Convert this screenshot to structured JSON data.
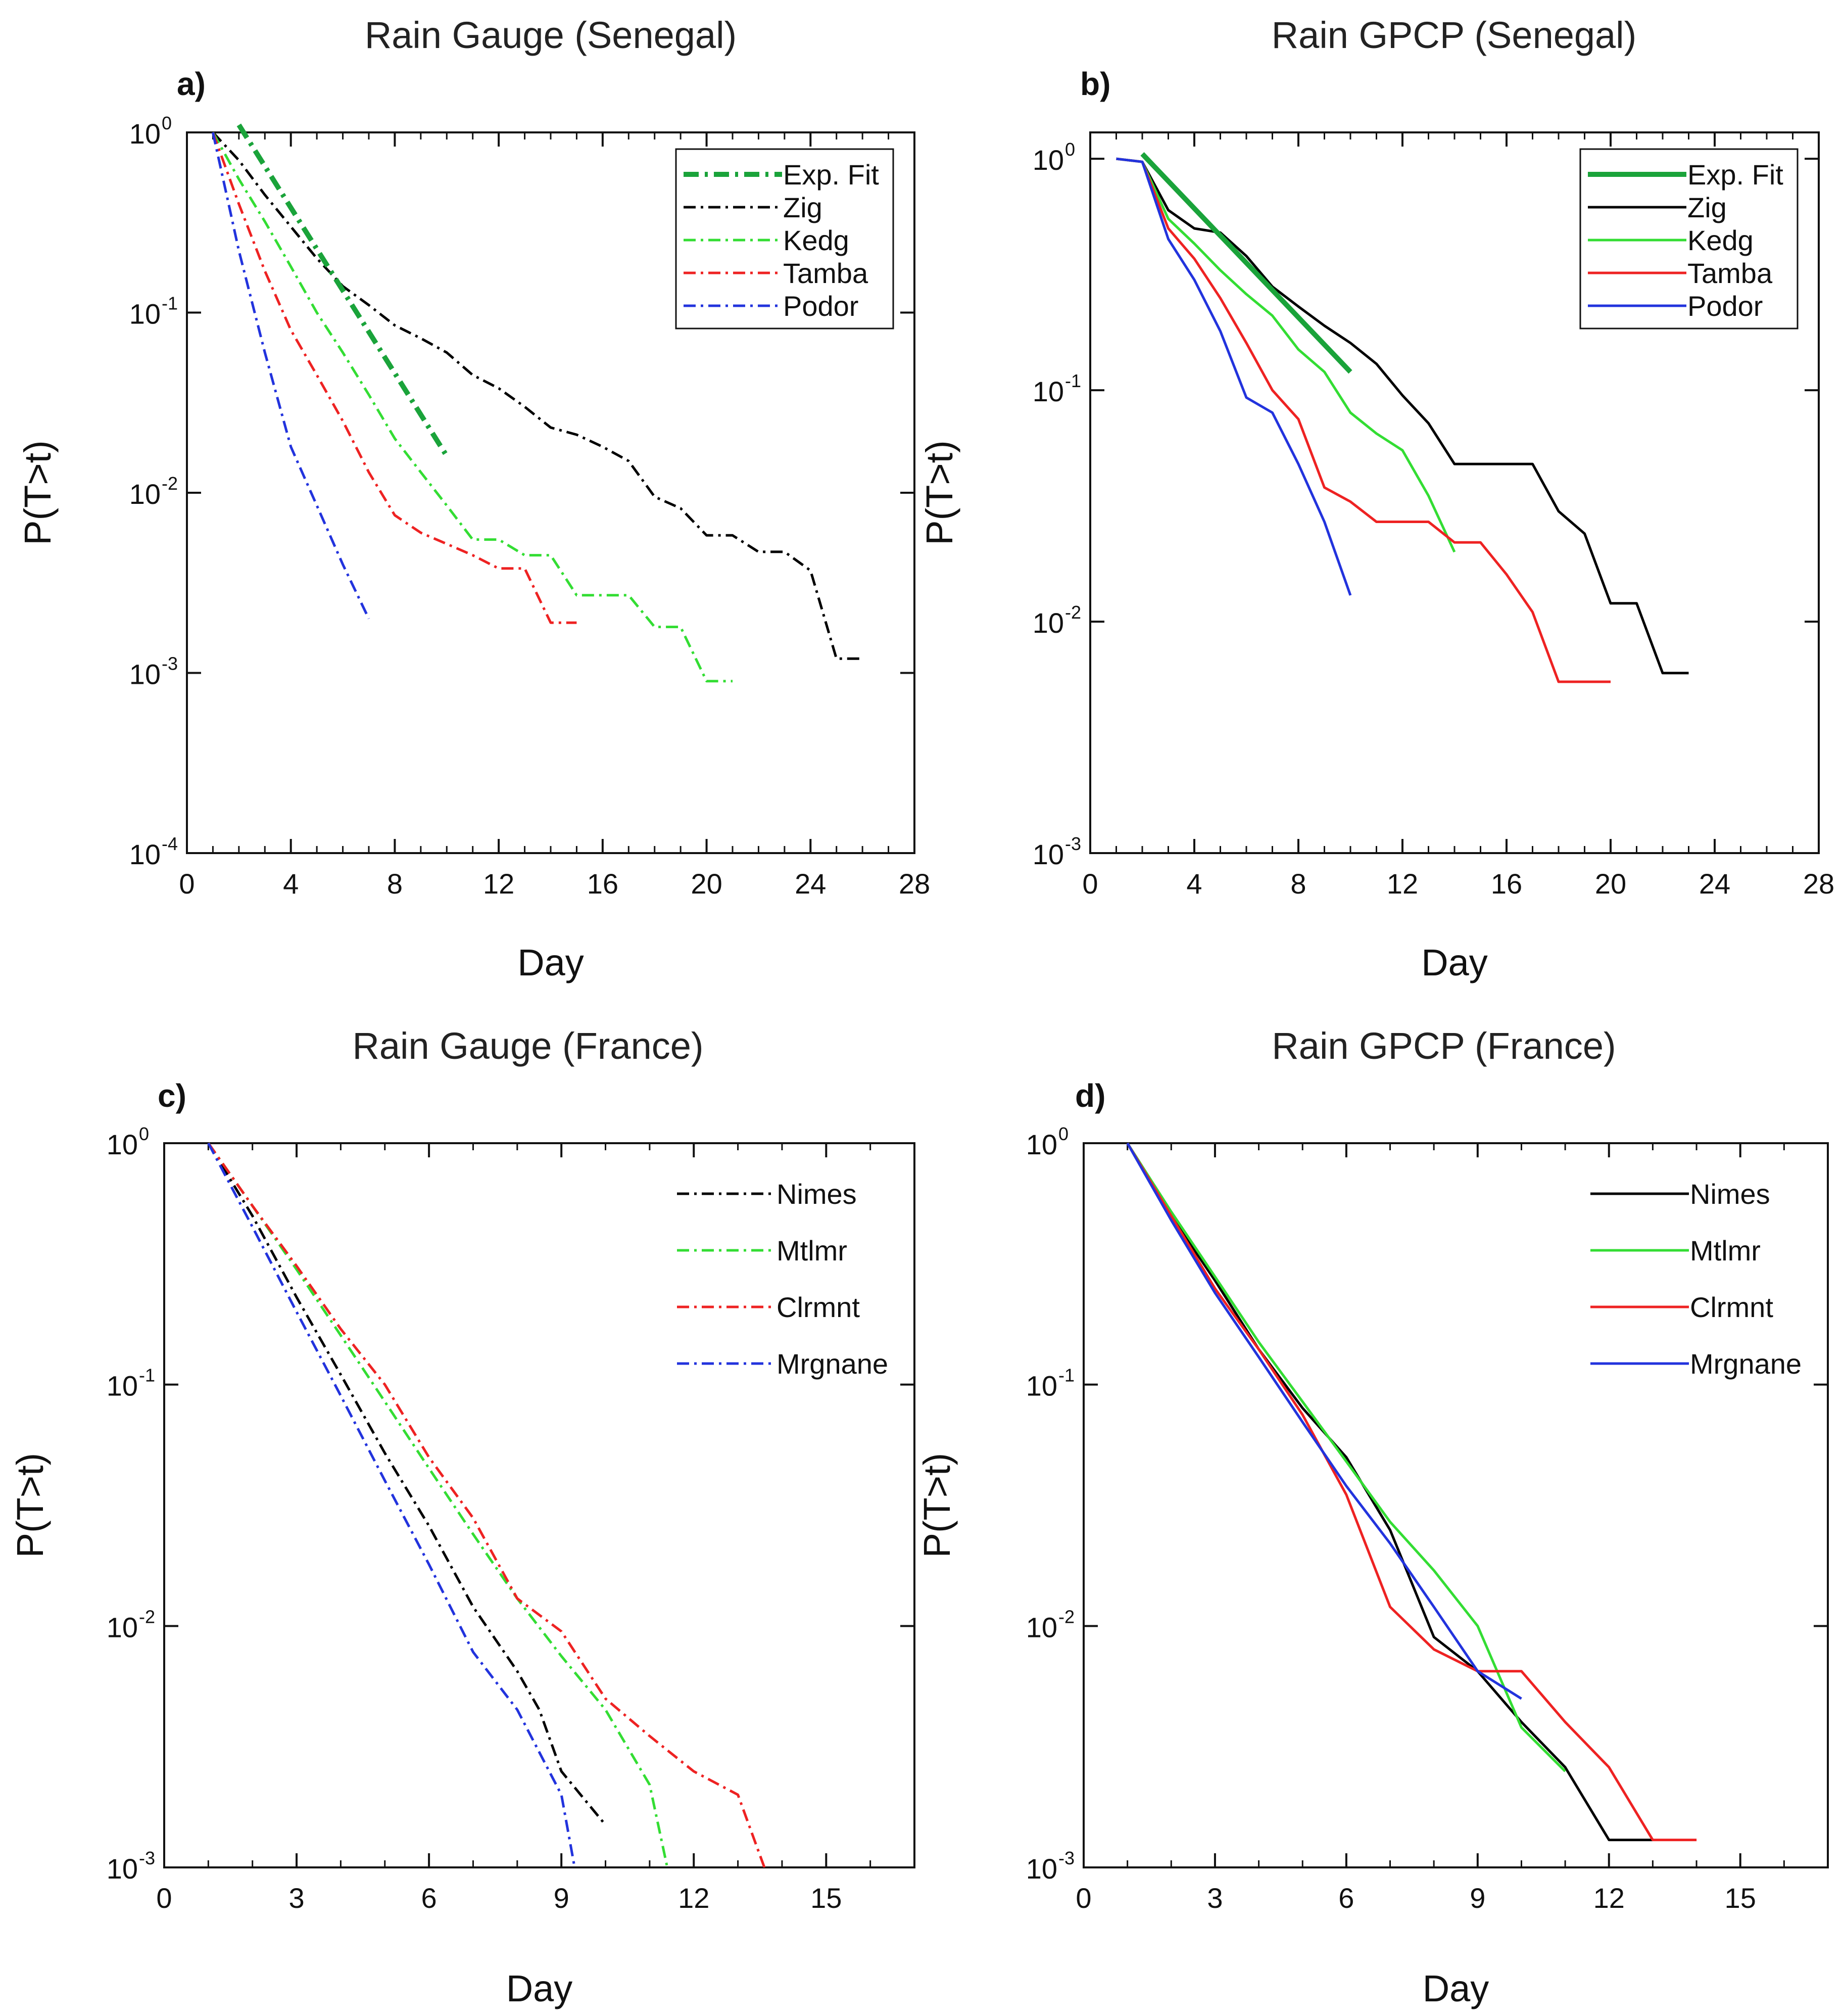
{
  "chart_data": [
    {
      "type": "line",
      "panel": "a)",
      "title": "Rain Gauge (Senegal)",
      "xlabel": "Day",
      "ylabel": "P(T>t)",
      "xscale": "linear",
      "yscale": "log",
      "xlim": [
        0,
        28
      ],
      "ylim": [
        0.0001,
        1
      ],
      "xticks": [
        0,
        4,
        8,
        12,
        16,
        20,
        24,
        28
      ],
      "yticks": [
        1,
        0.1,
        0.01,
        0.001,
        0.0001
      ],
      "ytick_labels": [
        {
          "base": "10",
          "exp": "0"
        },
        {
          "base": "10",
          "exp": "-1"
        },
        {
          "base": "10",
          "exp": "-2"
        },
        {
          "base": "10",
          "exp": "-3"
        },
        {
          "base": "10",
          "exp": "-4"
        }
      ],
      "grid": false,
      "legend": "top-right",
      "series": [
        {
          "name": "Exp. Fit",
          "color": "#1aa33a",
          "dash": "dashdot",
          "width": 10,
          "x": [
            2,
            10
          ],
          "y": [
            1.1,
            0.016
          ]
        },
        {
          "name": "Zig",
          "color": "#000000",
          "dash": "dashdot",
          "width": 5,
          "x": [
            1,
            2,
            3,
            4,
            5,
            6,
            7,
            8,
            9,
            10,
            11,
            12,
            13,
            14,
            15,
            16,
            17,
            18,
            19,
            20,
            21,
            22,
            23,
            24,
            25,
            26
          ],
          "y": [
            1,
            0.7,
            0.45,
            0.3,
            0.2,
            0.14,
            0.11,
            0.085,
            0.072,
            0.06,
            0.045,
            0.038,
            0.03,
            0.023,
            0.021,
            0.018,
            0.015,
            0.0095,
            0.0082,
            0.0058,
            0.0058,
            0.0047,
            0.0047,
            0.0037,
            0.0012,
            0.0012
          ]
        },
        {
          "name": "Kedg",
          "color": "#33dd33",
          "dash": "dashdot",
          "width": 5,
          "x": [
            1,
            2,
            3,
            4,
            5,
            6,
            7,
            8,
            9,
            10,
            11,
            12,
            13,
            14,
            15,
            16,
            17,
            18,
            19,
            20,
            21
          ],
          "y": [
            1,
            0.55,
            0.32,
            0.18,
            0.1,
            0.06,
            0.035,
            0.02,
            0.013,
            0.0085,
            0.0055,
            0.0055,
            0.0045,
            0.0045,
            0.0027,
            0.0027,
            0.0027,
            0.0018,
            0.0018,
            0.0009,
            0.0009
          ]
        },
        {
          "name": "Tamba",
          "color": "#ee2222",
          "dash": "dashdot",
          "width": 5,
          "x": [
            1,
            2,
            3,
            4,
            5,
            6,
            7,
            8,
            9,
            10,
            11,
            12,
            13,
            14,
            15
          ],
          "y": [
            1,
            0.4,
            0.17,
            0.08,
            0.045,
            0.025,
            0.013,
            0.0075,
            0.006,
            0.0052,
            0.0045,
            0.0038,
            0.0038,
            0.0019,
            0.0019
          ]
        },
        {
          "name": "Podor",
          "color": "#2233dd",
          "dash": "dashdot",
          "width": 5,
          "x": [
            1,
            2,
            3,
            4,
            5,
            6,
            7
          ],
          "y": [
            1,
            0.22,
            0.06,
            0.018,
            0.0085,
            0.004,
            0.002
          ]
        }
      ]
    },
    {
      "type": "line",
      "panel": "b)",
      "title": "Rain GPCP (Senegal)",
      "xlabel": "Day",
      "ylabel": "P(T>t)",
      "xscale": "linear",
      "yscale": "log",
      "xlim": [
        0,
        28
      ],
      "ylim": [
        0.001,
        1.3
      ],
      "xticks": [
        0,
        4,
        8,
        12,
        16,
        20,
        24,
        28
      ],
      "yticks": [
        1,
        0.1,
        0.01,
        0.001
      ],
      "ytick_labels": [
        {
          "base": "10",
          "exp": "0"
        },
        {
          "base": "10",
          "exp": "-1"
        },
        {
          "base": "10",
          "exp": "-2"
        },
        {
          "base": "10",
          "exp": "-3"
        }
      ],
      "grid": false,
      "legend": "top-right",
      "series": [
        {
          "name": "Exp. Fit",
          "color": "#1aa33a",
          "dash": "solid",
          "width": 10,
          "x": [
            2,
            10
          ],
          "y": [
            1.05,
            0.12
          ]
        },
        {
          "name": "Zig",
          "color": "#000000",
          "dash": "solid",
          "width": 5,
          "x": [
            1,
            2,
            3,
            4,
            5,
            6,
            7,
            8,
            9,
            10,
            11,
            12,
            13,
            14,
            15,
            16,
            17,
            18,
            19,
            20,
            21,
            22,
            23
          ],
          "y": [
            1,
            0.97,
            0.6,
            0.5,
            0.48,
            0.38,
            0.28,
            0.23,
            0.19,
            0.16,
            0.13,
            0.095,
            0.072,
            0.048,
            0.048,
            0.048,
            0.048,
            0.03,
            0.024,
            0.012,
            0.012,
            0.006,
            0.006
          ]
        },
        {
          "name": "Kedg",
          "color": "#33dd33",
          "dash": "solid",
          "width": 5,
          "x": [
            1,
            2,
            3,
            4,
            5,
            6,
            7,
            8,
            9,
            10,
            11,
            12,
            13,
            14
          ],
          "y": [
            1,
            0.97,
            0.55,
            0.43,
            0.33,
            0.26,
            0.21,
            0.15,
            0.12,
            0.08,
            0.065,
            0.055,
            0.035,
            0.02
          ]
        },
        {
          "name": "Tamba",
          "color": "#ee2222",
          "dash": "solid",
          "width": 5,
          "x": [
            1,
            2,
            3,
            4,
            5,
            6,
            7,
            8,
            9,
            10,
            11,
            12,
            13,
            14,
            15,
            16,
            17,
            18,
            19,
            20
          ],
          "y": [
            1,
            0.97,
            0.5,
            0.37,
            0.25,
            0.16,
            0.1,
            0.075,
            0.038,
            0.033,
            0.027,
            0.027,
            0.027,
            0.022,
            0.022,
            0.016,
            0.011,
            0.0055,
            0.0055,
            0.0055
          ]
        },
        {
          "name": "Podor",
          "color": "#2233dd",
          "dash": "solid",
          "width": 5,
          "x": [
            1,
            2,
            3,
            4,
            5,
            6,
            7,
            8,
            9,
            10
          ],
          "y": [
            1,
            0.97,
            0.45,
            0.3,
            0.18,
            0.093,
            0.08,
            0.048,
            0.027,
            0.013
          ]
        }
      ]
    },
    {
      "type": "line",
      "panel": "c)",
      "title": "Rain Gauge (France)",
      "xlabel": "Day",
      "ylabel": "P(T>t)",
      "xscale": "linear",
      "yscale": "log",
      "xlim": [
        0,
        17
      ],
      "ylim": [
        0.001,
        1
      ],
      "xticks": [
        0,
        3,
        6,
        9,
        12,
        15
      ],
      "yticks": [
        1,
        0.1,
        0.01,
        0.001
      ],
      "ytick_labels": [
        {
          "base": "10",
          "exp": "0"
        },
        {
          "base": "10",
          "exp": "-1"
        },
        {
          "base": "10",
          "exp": "-2"
        },
        {
          "base": "10",
          "exp": "-3"
        }
      ],
      "grid": false,
      "legend": "top-right",
      "series": [
        {
          "name": "Nimes",
          "color": "#000000",
          "dash": "dashdot",
          "width": 5,
          "x": [
            1,
            2,
            3,
            4,
            5,
            6,
            7,
            8,
            8.5,
            9,
            10
          ],
          "y": [
            1,
            0.5,
            0.23,
            0.11,
            0.052,
            0.026,
            0.012,
            0.0065,
            0.0045,
            0.0025,
            0.0015
          ]
        },
        {
          "name": "Mtlmr",
          "color": "#33dd33",
          "dash": "dashdot",
          "width": 5,
          "x": [
            1,
            2,
            3,
            4,
            5,
            6,
            7,
            8,
            9,
            10,
            11,
            11.4
          ],
          "y": [
            1,
            0.55,
            0.3,
            0.16,
            0.085,
            0.045,
            0.024,
            0.013,
            0.0075,
            0.0045,
            0.0022,
            0.001
          ]
        },
        {
          "name": "Clrmnt",
          "color": "#ee2222",
          "dash": "dashdot",
          "width": 5,
          "x": [
            1,
            2,
            3,
            4,
            5,
            6,
            7,
            8,
            9,
            10,
            11,
            12,
            13,
            13.6
          ],
          "y": [
            1,
            0.55,
            0.31,
            0.17,
            0.1,
            0.05,
            0.028,
            0.013,
            0.0095,
            0.005,
            0.0035,
            0.0025,
            0.002,
            0.001
          ]
        },
        {
          "name": "Mrgnane",
          "color": "#2233dd",
          "dash": "dashdot",
          "width": 5,
          "x": [
            1,
            2,
            3,
            4,
            5,
            6,
            7,
            8,
            9,
            9.3
          ],
          "y": [
            1,
            0.45,
            0.2,
            0.09,
            0.04,
            0.018,
            0.0078,
            0.0045,
            0.002,
            0.001
          ]
        }
      ]
    },
    {
      "type": "line",
      "panel": "d)",
      "title": "Rain GPCP (France)",
      "xlabel": "Day",
      "ylabel": "P(T>t)",
      "xscale": "linear",
      "yscale": "log",
      "xlim": [
        0,
        17
      ],
      "ylim": [
        0.001,
        1
      ],
      "xticks": [
        0,
        3,
        6,
        9,
        12,
        15
      ],
      "yticks": [
        1,
        0.1,
        0.01,
        0.001
      ],
      "ytick_labels": [
        {
          "base": "10",
          "exp": "0"
        },
        {
          "base": "10",
          "exp": "-1"
        },
        {
          "base": "10",
          "exp": "-2"
        },
        {
          "base": "10",
          "exp": "-3"
        }
      ],
      "grid": false,
      "legend": "top-right",
      "series": [
        {
          "name": "Nimes",
          "color": "#000000",
          "dash": "solid",
          "width": 5,
          "x": [
            1,
            2,
            3,
            4,
            5,
            6,
            7,
            7.5,
            8,
            9,
            10,
            11,
            12,
            13
          ],
          "y": [
            1,
            0.5,
            0.27,
            0.14,
            0.08,
            0.05,
            0.025,
            0.015,
            0.009,
            0.0065,
            0.004,
            0.0026,
            0.0013,
            0.0013
          ]
        },
        {
          "name": "Mtlmr",
          "color": "#33dd33",
          "dash": "solid",
          "width": 5,
          "x": [
            1,
            2,
            3,
            4,
            5,
            6,
            7,
            8,
            9,
            10,
            11
          ],
          "y": [
            1,
            0.52,
            0.28,
            0.15,
            0.085,
            0.048,
            0.027,
            0.017,
            0.01,
            0.0038,
            0.0025
          ]
        },
        {
          "name": "Clrmnt",
          "color": "#ee2222",
          "dash": "solid",
          "width": 5,
          "x": [
            1,
            2,
            3,
            4,
            5,
            6,
            7,
            8,
            9,
            10,
            11,
            12,
            13,
            14
          ],
          "y": [
            1,
            0.5,
            0.25,
            0.14,
            0.075,
            0.035,
            0.012,
            0.008,
            0.0065,
            0.0065,
            0.004,
            0.0026,
            0.0013,
            0.0013
          ]
        },
        {
          "name": "Mrgnane",
          "color": "#2233dd",
          "dash": "solid",
          "width": 5,
          "x": [
            1,
            2,
            3,
            4,
            5,
            6,
            7,
            8,
            9,
            10
          ],
          "y": [
            1,
            0.48,
            0.24,
            0.13,
            0.07,
            0.038,
            0.022,
            0.012,
            0.0065,
            0.005
          ]
        }
      ]
    }
  ]
}
